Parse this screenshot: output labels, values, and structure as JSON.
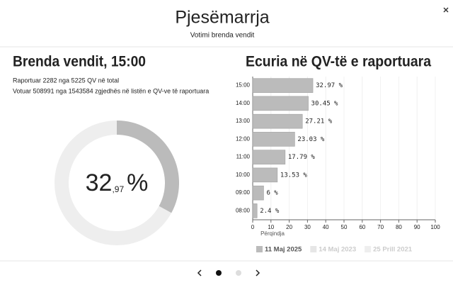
{
  "header": {
    "title": "Pjesëmarrja",
    "subtitle": "Votimi brenda vendit"
  },
  "left": {
    "heading": "Brenda vendit, 15:00",
    "lines": [
      "Raportuar 2282 nga 5225 QV në total",
      "Votuar 508991 nga 1543584 zgjedhës në listën e QV-ve të raportuara"
    ]
  },
  "chart_data": [
    {
      "type": "donut",
      "value": 32.97,
      "max": 100,
      "color": "#bbbbbb",
      "track_color": "#eeeeee",
      "center_label": {
        "integer": "32",
        "decimal": ",97",
        "unit": "%"
      }
    },
    {
      "type": "bar",
      "orientation": "horizontal",
      "title": "Ecuria në QV-të e raportuara",
      "categories": [
        "15:00",
        "14:00",
        "13:00",
        "12:00",
        "11:00",
        "10:00",
        "09:00",
        "08:00"
      ],
      "values": [
        32.97,
        30.45,
        27.21,
        23.03,
        17.79,
        13.53,
        6,
        2.4
      ],
      "value_labels": [
        "32.97 %",
        "30.45 %",
        "27.21 %",
        "23.03 %",
        "17.79 %",
        "13.53 %",
        "6 %",
        "2.4 %"
      ],
      "color": "#bbbbbb",
      "xlabel": "Përqindja",
      "xlim": [
        0,
        100
      ],
      "xticks": [
        0,
        10,
        20,
        30,
        40,
        50,
        60,
        70,
        80,
        90,
        100
      ],
      "legend": [
        {
          "name": "11 Maj 2025",
          "color": "#bbbbbb",
          "active": true
        },
        {
          "name": "14 Maj 2023",
          "color": "#e6e6e6",
          "active": false
        },
        {
          "name": "25 Prill 2021",
          "color": "#eeeeee",
          "active": false
        }
      ]
    }
  ]
}
